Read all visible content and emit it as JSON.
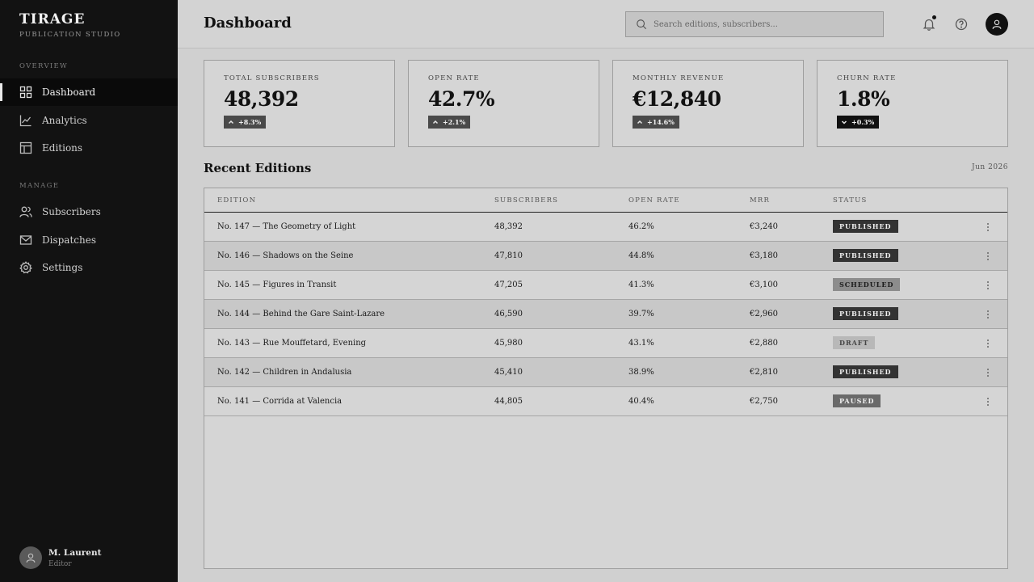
{
  "brand": {
    "title": "TIRAGE",
    "subtitle": "PUBLICATION STUDIO"
  },
  "sidebar": {
    "overview_label": "OVERVIEW",
    "manage_label": "MANAGE",
    "items": [
      {
        "label": "Dashboard",
        "icon": "grid-icon",
        "active": true
      },
      {
        "label": "Analytics",
        "icon": "chart-line-icon"
      },
      {
        "label": "Editions",
        "icon": "layout-icon"
      },
      {
        "label": "Subscribers",
        "icon": "users-icon"
      },
      {
        "label": "Dispatches",
        "icon": "mail-icon"
      },
      {
        "label": "Settings",
        "icon": "gear-icon"
      }
    ],
    "user": {
      "name": "M. Laurent",
      "role": "Editor"
    }
  },
  "header": {
    "title": "Dashboard",
    "search_placeholder": "Search editions, subscribers..."
  },
  "stats": [
    {
      "label": "TOTAL SUBSCRIBERS",
      "value": "48,392",
      "change": "+8.3%",
      "direction": "up"
    },
    {
      "label": "OPEN RATE",
      "value": "42.7%",
      "change": "+2.1%",
      "direction": "up"
    },
    {
      "label": "MONTHLY REVENUE",
      "value": "€12,840",
      "change": "+14.6%",
      "direction": "up"
    },
    {
      "label": "CHURN RATE",
      "value": "1.8%",
      "change": "+0.3%",
      "direction": "down"
    }
  ],
  "recent": {
    "title": "Recent Editions",
    "date": "Jun 2026",
    "columns": [
      "EDITION",
      "SUBSCRIBERS",
      "OPEN RATE",
      "MRR",
      "STATUS"
    ],
    "rows": [
      {
        "edition": "No. 147 — The Geometry of Light",
        "subscribers": "48,392",
        "open_rate": "46.2%",
        "mrr": "€3,240",
        "status": "PUBLISHED"
      },
      {
        "edition": "No. 146 — Shadows on the Seine",
        "subscribers": "47,810",
        "open_rate": "44.8%",
        "mrr": "€3,180",
        "status": "PUBLISHED"
      },
      {
        "edition": "No. 145 — Figures in Transit",
        "subscribers": "47,205",
        "open_rate": "41.3%",
        "mrr": "€3,100",
        "status": "SCHEDULED"
      },
      {
        "edition": "No. 144 — Behind the Gare Saint-Lazare",
        "subscribers": "46,590",
        "open_rate": "39.7%",
        "mrr": "€2,960",
        "status": "PUBLISHED"
      },
      {
        "edition": "No. 143 — Rue Mouffetard, Evening",
        "subscribers": "45,980",
        "open_rate": "43.1%",
        "mrr": "€2,880",
        "status": "DRAFT"
      },
      {
        "edition": "No. 142 — Children in Andalusia",
        "subscribers": "45,410",
        "open_rate": "38.9%",
        "mrr": "€2,810",
        "status": "PUBLISHED"
      },
      {
        "edition": "No. 141 — Corrida at Valencia",
        "subscribers": "44,805",
        "open_rate": "40.4%",
        "mrr": "€2,750",
        "status": "PAUSED"
      }
    ]
  }
}
